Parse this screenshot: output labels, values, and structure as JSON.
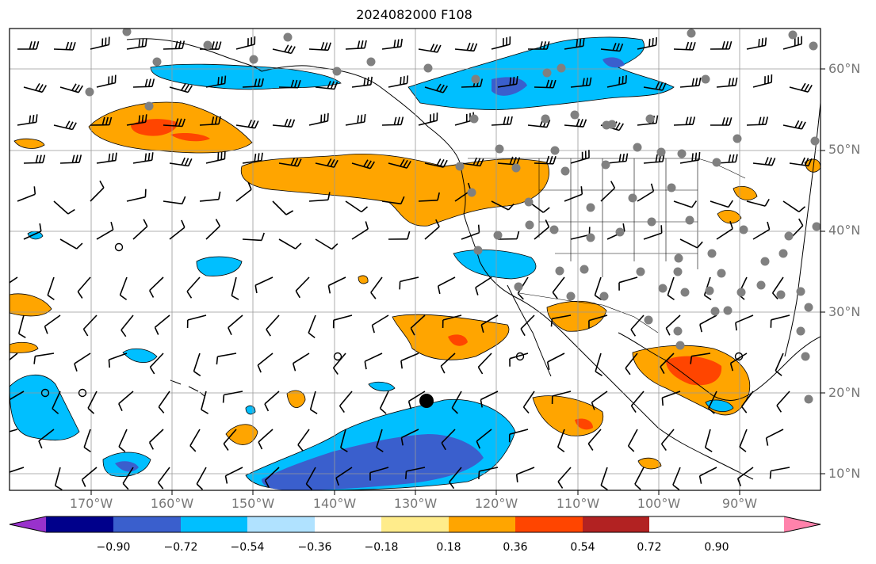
{
  "title": "2024082000 F108",
  "lat_labels": [
    "60°N",
    "50°N",
    "40°N",
    "30°N",
    "20°N",
    "10°N"
  ],
  "lon_labels": [
    "170°W",
    "160°W",
    "150°W",
    "140°W",
    "130°W",
    "120°W",
    "110°W",
    "100°W",
    "90°W"
  ],
  "colorbar": {
    "ticks": [
      "−0.90",
      "−0.72",
      "−0.54",
      "−0.36",
      "−0.18",
      "0.18",
      "0.36",
      "0.54",
      "0.72",
      "0.90"
    ],
    "colors": [
      "#9932cc",
      "#00008b",
      "#3a5fcd",
      "#00bfff",
      "#b0e2ff",
      "#ffffff",
      "#ffec8b",
      "#ffa500",
      "#ff4500",
      "#b22222",
      "#ff82ab"
    ]
  },
  "map": {
    "projection": "PlateCarree",
    "extent_lon": [
      -179,
      -79
    ],
    "extent_lat": [
      7,
      64
    ],
    "gridlines": true,
    "positive_color": "#ffa500",
    "positive_core_color": "#ff4500",
    "negative_color": "#00bfff",
    "negative_core_color": "#3a5fcd"
  }
}
